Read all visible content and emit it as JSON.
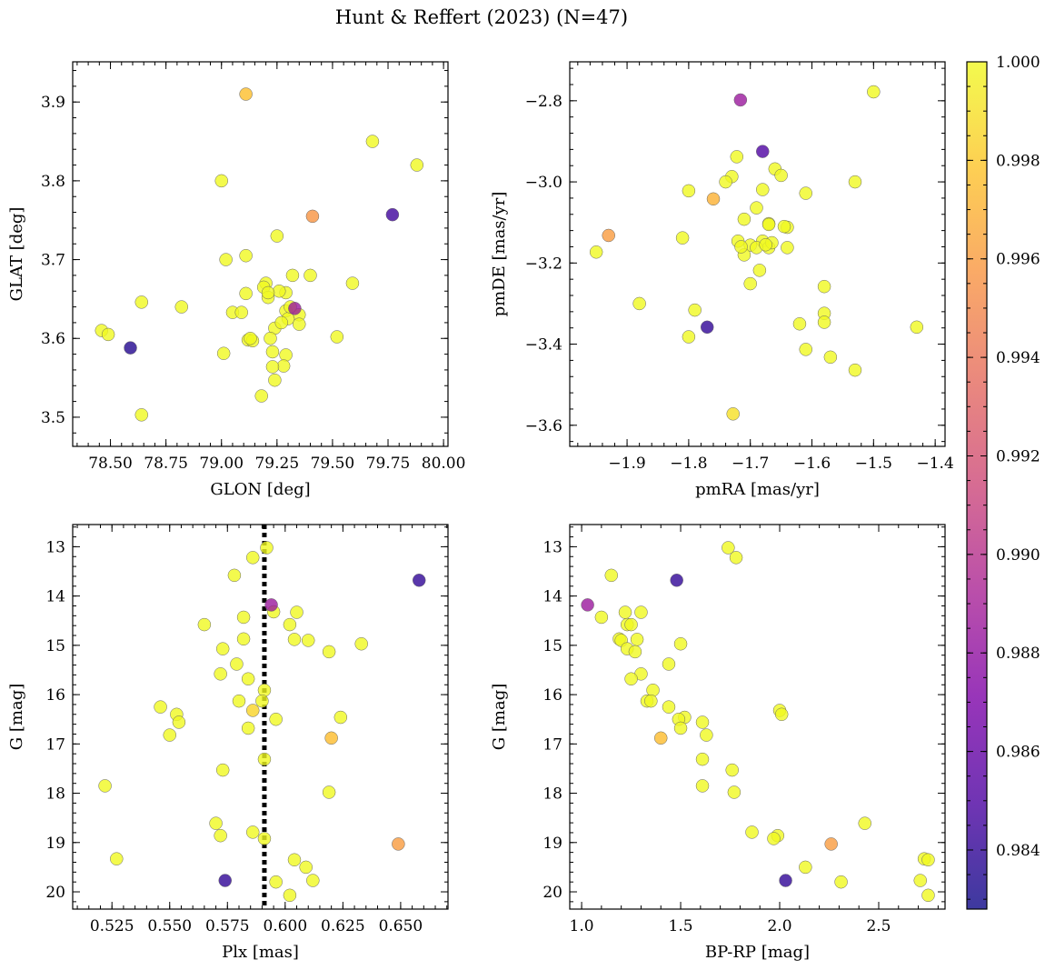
{
  "chart_data": {
    "type": "scatter",
    "title": "Hunt & Reffert (2023) (N=47)",
    "colorbar": {
      "colormap": "plasma",
      "range": [
        0.9828,
        1.0
      ],
      "ticks": [
        0.984,
        0.986,
        0.988,
        0.99,
        0.992,
        0.994,
        0.996,
        0.998,
        1.0
      ],
      "tick_labels": [
        "0.984",
        "0.986",
        "0.988",
        "0.990",
        "0.992",
        "0.994",
        "0.996",
        "0.998",
        "1.000"
      ]
    },
    "panels": [
      {
        "xlabel": "GLON [deg]",
        "ylabel": "GLAT [deg]",
        "xlim": [
          78.33,
          80.02
        ],
        "ylim": [
          3.463,
          3.951
        ],
        "xticks": [
          78.5,
          78.75,
          79.0,
          79.25,
          79.5,
          79.75,
          80.0
        ],
        "xtick_labels": [
          "78.50",
          "78.75",
          "79.00",
          "79.25",
          "79.50",
          "79.75",
          "80.00"
        ],
        "yticks": [
          3.5,
          3.6,
          3.7,
          3.8,
          3.9
        ],
        "ytick_labels": [
          "3.5",
          "3.6",
          "3.7",
          "3.8",
          "3.9"
        ],
        "points": [
          [
            79.11,
            3.91,
            0.9976
          ],
          [
            79.68,
            3.85,
            1.0
          ],
          [
            79.88,
            3.82,
            1.0
          ],
          [
            79.0,
            3.8,
            1.0
          ],
          [
            79.41,
            3.755,
            0.9957
          ],
          [
            79.77,
            3.757,
            0.9845
          ],
          [
            79.25,
            3.73,
            1.0
          ],
          [
            79.11,
            3.705,
            1.0
          ],
          [
            79.02,
            3.7,
            1.0
          ],
          [
            79.32,
            3.68,
            1.0
          ],
          [
            79.4,
            3.68,
            1.0
          ],
          [
            79.59,
            3.67,
            1.0
          ],
          [
            79.2,
            3.67,
            1.0
          ],
          [
            79.19,
            3.665,
            1.0
          ],
          [
            79.11,
            3.657,
            1.0
          ],
          [
            79.29,
            3.658,
            1.0
          ],
          [
            79.21,
            3.652,
            1.0
          ],
          [
            78.64,
            3.646,
            1.0
          ],
          [
            78.82,
            3.64,
            1.0
          ],
          [
            79.33,
            3.638,
            0.9885
          ],
          [
            79.29,
            3.635,
            1.0
          ],
          [
            79.05,
            3.633,
            1.0
          ],
          [
            79.09,
            3.633,
            1.0
          ],
          [
            79.35,
            3.63,
            1.0
          ],
          [
            79.3,
            3.625,
            1.0
          ],
          [
            79.35,
            3.618,
            1.0
          ],
          [
            79.24,
            3.613,
            1.0
          ],
          [
            78.46,
            3.61,
            1.0
          ],
          [
            78.49,
            3.605,
            1.0
          ],
          [
            79.52,
            3.602,
            1.0
          ],
          [
            79.22,
            3.6,
            1.0
          ],
          [
            79.12,
            3.598,
            1.0
          ],
          [
            79.14,
            3.597,
            1.0
          ],
          [
            78.59,
            3.588,
            0.9835
          ],
          [
            79.23,
            3.583,
            1.0
          ],
          [
            79.01,
            3.581,
            1.0
          ],
          [
            79.29,
            3.579,
            1.0
          ],
          [
            79.28,
            3.565,
            1.0
          ],
          [
            79.23,
            3.564,
            1.0
          ],
          [
            79.24,
            3.547,
            1.0
          ],
          [
            79.18,
            3.527,
            1.0
          ],
          [
            78.64,
            3.503,
            1.0
          ],
          [
            79.26,
            3.66,
            1.0
          ],
          [
            79.21,
            3.658,
            1.0
          ],
          [
            79.27,
            3.62,
            1.0
          ],
          [
            79.13,
            3.6,
            1.0
          ],
          [
            79.31,
            3.64,
            1.0
          ]
        ]
      },
      {
        "xlabel": "pmRA [mas/yr]",
        "ylabel": "pmDE [mas/yr]",
        "xlim": [
          -1.993,
          -1.384
        ],
        "ylim": [
          -3.652,
          -2.704
        ],
        "xticks": [
          -1.9,
          -1.8,
          -1.7,
          -1.6,
          -1.5,
          -1.4
        ],
        "xtick_labels": [
          "−1.9",
          "−1.8",
          "−1.7",
          "−1.6",
          "−1.5",
          "−1.4"
        ],
        "yticks": [
          -3.6,
          -3.4,
          -3.2,
          -3.0,
          -2.8
        ],
        "ytick_labels": [
          "−3.6",
          "−3.4",
          "−3.2",
          "−3.0",
          "−2.8"
        ],
        "points": [
          [
            -1.716,
            -2.798,
            0.9885
          ],
          [
            -1.5,
            -2.778,
            1.0
          ],
          [
            -1.68,
            -2.925,
            0.985
          ],
          [
            -1.722,
            -2.938,
            1.0
          ],
          [
            -1.66,
            -2.968,
            1.0
          ],
          [
            -1.73,
            -2.987,
            1.0
          ],
          [
            -1.74,
            -3.0,
            1.0
          ],
          [
            -1.65,
            -2.984,
            1.0
          ],
          [
            -1.53,
            -3.0,
            1.0
          ],
          [
            -1.76,
            -3.042,
            0.997
          ],
          [
            -1.8,
            -3.022,
            1.0
          ],
          [
            -1.69,
            -3.064,
            1.0
          ],
          [
            -1.68,
            -3.019,
            1.0
          ],
          [
            -1.61,
            -3.028,
            1.0
          ],
          [
            -1.71,
            -3.092,
            1.0
          ],
          [
            -1.67,
            -3.103,
            1.0
          ],
          [
            -1.64,
            -3.112,
            1.0
          ],
          [
            -1.81,
            -3.138,
            1.0
          ],
          [
            -1.93,
            -3.132,
            0.996
          ],
          [
            -1.72,
            -3.146,
            1.0
          ],
          [
            -1.7,
            -3.156,
            1.0
          ],
          [
            -1.68,
            -3.146,
            1.0
          ],
          [
            -1.67,
            -3.162,
            1.0
          ],
          [
            -1.69,
            -3.162,
            1.0
          ],
          [
            -1.64,
            -3.162,
            1.0
          ],
          [
            -1.95,
            -3.173,
            1.0
          ],
          [
            -1.71,
            -3.18,
            1.0
          ],
          [
            -1.685,
            -3.218,
            1.0
          ],
          [
            -1.7,
            -3.251,
            1.0
          ],
          [
            -1.58,
            -3.258,
            1.0
          ],
          [
            -1.88,
            -3.3,
            1.0
          ],
          [
            -1.79,
            -3.316,
            1.0
          ],
          [
            -1.58,
            -3.324,
            1.0
          ],
          [
            -1.62,
            -3.35,
            1.0
          ],
          [
            -1.58,
            -3.346,
            1.0
          ],
          [
            -1.77,
            -3.358,
            0.984
          ],
          [
            -1.43,
            -3.358,
            1.0
          ],
          [
            -1.8,
            -3.382,
            1.0
          ],
          [
            -1.61,
            -3.413,
            1.0
          ],
          [
            -1.57,
            -3.432,
            1.0
          ],
          [
            -1.53,
            -3.464,
            1.0
          ],
          [
            -1.728,
            -3.572,
            0.999
          ],
          [
            -1.67,
            -3.105,
            1.0
          ],
          [
            -1.645,
            -3.11,
            1.0
          ],
          [
            -1.665,
            -3.15,
            1.0
          ],
          [
            -1.675,
            -3.155,
            1.0
          ],
          [
            -1.715,
            -3.16,
            1.0
          ]
        ]
      },
      {
        "xlabel": "Plx [mas]",
        "ylabel": "G [mag]",
        "xlim": [
          0.508,
          0.6705
        ],
        "ylim": [
          20.35,
          12.55
        ],
        "xticks": [
          0.525,
          0.55,
          0.575,
          0.6,
          0.625,
          0.65
        ],
        "xtick_labels": [
          "0.525",
          "0.550",
          "0.575",
          "0.600",
          "0.625",
          "0.650"
        ],
        "yticks": [
          13,
          14,
          15,
          16,
          17,
          18,
          19,
          20
        ],
        "ytick_labels": [
          "13",
          "14",
          "15",
          "16",
          "17",
          "18",
          "19",
          "20"
        ],
        "vline": 0.591,
        "points": [
          [
            0.592,
            13.02,
            1.0
          ],
          [
            0.586,
            13.22,
            1.0
          ],
          [
            0.578,
            13.58,
            1.0
          ],
          [
            0.658,
            13.68,
            0.984
          ],
          [
            0.594,
            14.18,
            0.9885
          ],
          [
            0.595,
            14.32,
            1.0
          ],
          [
            0.605,
            14.33,
            1.0
          ],
          [
            0.582,
            14.43,
            1.0
          ],
          [
            0.565,
            14.58,
            1.0
          ],
          [
            0.602,
            14.58,
            1.0
          ],
          [
            0.582,
            14.87,
            1.0
          ],
          [
            0.604,
            14.88,
            1.0
          ],
          [
            0.61,
            14.9,
            1.0
          ],
          [
            0.633,
            14.97,
            1.0
          ],
          [
            0.573,
            15.07,
            1.0
          ],
          [
            0.619,
            15.13,
            1.0
          ],
          [
            0.579,
            15.38,
            1.0
          ],
          [
            0.572,
            15.58,
            1.0
          ],
          [
            0.584,
            15.68,
            1.0
          ],
          [
            0.591,
            15.91,
            1.0
          ],
          [
            0.59,
            16.13,
            1.0
          ],
          [
            0.58,
            16.13,
            1.0
          ],
          [
            0.546,
            16.25,
            1.0
          ],
          [
            0.586,
            16.32,
            0.9985
          ],
          [
            0.553,
            16.4,
            1.0
          ],
          [
            0.624,
            16.46,
            1.0
          ],
          [
            0.596,
            16.5,
            1.0
          ],
          [
            0.554,
            16.56,
            1.0
          ],
          [
            0.584,
            16.68,
            1.0
          ],
          [
            0.55,
            16.82,
            1.0
          ],
          [
            0.62,
            16.88,
            0.9975
          ],
          [
            0.591,
            17.31,
            1.0
          ],
          [
            0.573,
            17.53,
            1.0
          ],
          [
            0.522,
            17.85,
            1.0
          ],
          [
            0.619,
            17.98,
            1.0
          ],
          [
            0.57,
            18.61,
            1.0
          ],
          [
            0.586,
            18.79,
            1.0
          ],
          [
            0.572,
            18.86,
            1.0
          ],
          [
            0.591,
            18.92,
            1.0
          ],
          [
            0.649,
            19.03,
            0.996
          ],
          [
            0.527,
            19.33,
            1.0
          ],
          [
            0.604,
            19.35,
            1.0
          ],
          [
            0.609,
            19.5,
            1.0
          ],
          [
            0.574,
            19.77,
            0.984
          ],
          [
            0.612,
            19.77,
            1.0
          ],
          [
            0.596,
            19.8,
            1.0
          ],
          [
            0.602,
            20.07,
            1.0
          ]
        ]
      },
      {
        "xlabel": "BP-RP [mag]",
        "ylabel": "G [mag]",
        "xlim": [
          0.94,
          2.835
        ],
        "ylim": [
          20.35,
          12.55
        ],
        "xticks": [
          1.0,
          1.5,
          2.0,
          2.5
        ],
        "xtick_labels": [
          "1.0",
          "1.5",
          "2.0",
          "2.5"
        ],
        "yticks": [
          13,
          14,
          15,
          16,
          17,
          18,
          19,
          20
        ],
        "ytick_labels": [
          "13",
          "14",
          "15",
          "16",
          "17",
          "18",
          "19",
          "20"
        ],
        "points": [
          [
            1.74,
            13.02,
            1.0
          ],
          [
            1.78,
            13.22,
            1.0
          ],
          [
            1.15,
            13.58,
            1.0
          ],
          [
            1.48,
            13.68,
            0.984
          ],
          [
            1.03,
            14.18,
            0.9885
          ],
          [
            1.1,
            14.43,
            1.0
          ],
          [
            1.22,
            14.33,
            1.0
          ],
          [
            1.3,
            14.33,
            1.0
          ],
          [
            1.23,
            14.58,
            1.0
          ],
          [
            1.25,
            14.58,
            1.0
          ],
          [
            1.19,
            14.87,
            1.0
          ],
          [
            1.28,
            14.88,
            1.0
          ],
          [
            1.2,
            14.9,
            1.0
          ],
          [
            1.5,
            14.97,
            1.0
          ],
          [
            1.23,
            15.07,
            1.0
          ],
          [
            1.27,
            15.13,
            1.0
          ],
          [
            1.44,
            15.38,
            1.0
          ],
          [
            1.3,
            15.58,
            1.0
          ],
          [
            1.25,
            15.68,
            1.0
          ],
          [
            1.36,
            15.91,
            1.0
          ],
          [
            1.33,
            16.13,
            1.0
          ],
          [
            1.35,
            16.13,
            1.0
          ],
          [
            1.44,
            16.25,
            1.0
          ],
          [
            2.0,
            16.32,
            1.0
          ],
          [
            2.01,
            16.4,
            1.0
          ],
          [
            1.52,
            16.46,
            1.0
          ],
          [
            1.49,
            16.5,
            1.0
          ],
          [
            1.61,
            16.56,
            1.0
          ],
          [
            1.5,
            16.68,
            1.0
          ],
          [
            1.63,
            16.82,
            1.0
          ],
          [
            1.4,
            16.88,
            0.9975
          ],
          [
            1.61,
            17.31,
            1.0
          ],
          [
            1.76,
            17.53,
            1.0
          ],
          [
            1.61,
            17.85,
            1.0
          ],
          [
            1.77,
            17.98,
            1.0
          ],
          [
            2.43,
            18.61,
            1.0
          ],
          [
            1.86,
            18.79,
            1.0
          ],
          [
            1.99,
            18.86,
            1.0
          ],
          [
            1.97,
            18.92,
            1.0
          ],
          [
            2.26,
            19.03,
            0.996
          ],
          [
            2.73,
            19.33,
            1.0
          ],
          [
            2.75,
            19.35,
            1.0
          ],
          [
            2.13,
            19.5,
            1.0
          ],
          [
            2.03,
            19.77,
            0.984
          ],
          [
            2.71,
            19.77,
            1.0
          ],
          [
            2.31,
            19.8,
            1.0
          ],
          [
            2.75,
            20.07,
            1.0
          ]
        ]
      }
    ]
  }
}
